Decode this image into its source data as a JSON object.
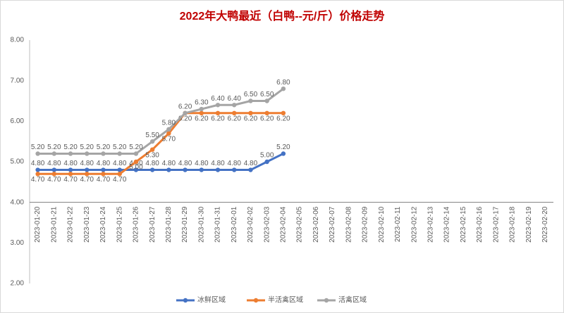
{
  "chart_data": {
    "type": "line",
    "title": "2022年大鸭最近（白鸭--元/斤）价格走势",
    "categories": [
      "2023-01-20",
      "2023-01-21",
      "2023-01-22",
      "2023-01-23",
      "2023-01-24",
      "2023-01-25",
      "2023-01-26",
      "2023-01-27",
      "2023-01-28",
      "2023-01-29",
      "2023-01-30",
      "2023-01-31",
      "2023-02-01",
      "2023-02-02",
      "2023-02-03",
      "2023-02-04",
      "2023-02-05",
      "2023-02-06",
      "2023-02-07",
      "2023-02-08",
      "2023-02-09",
      "2023-02-10",
      "2023-02-11",
      "2023-02-12",
      "2023-02-13",
      "2023-02-14",
      "2023-02-15",
      "2023-02-16",
      "2023-02-17",
      "2023-02-18",
      "2023-02-19",
      "2023-02-20"
    ],
    "series": [
      {
        "name": "冰鲜区域",
        "color": "#4472c4",
        "values": [
          4.8,
          4.8,
          4.8,
          4.8,
          4.8,
          4.8,
          4.8,
          4.8,
          4.8,
          4.8,
          4.8,
          4.8,
          4.8,
          4.8,
          5.0,
          5.2,
          null,
          null,
          null,
          null,
          null,
          null,
          null,
          null,
          null,
          null,
          null,
          null,
          null,
          null,
          null,
          null
        ],
        "value_labels": [
          "4.80",
          "4.80",
          "4.80",
          "4.80",
          "4.80",
          "4.80",
          "4.80",
          "4.80",
          "4.80",
          "4.80",
          "4.80",
          "4.80",
          "4.80",
          "4.80",
          "5.00",
          "5.20",
          null,
          null,
          null,
          null,
          null,
          null,
          null,
          null,
          null,
          null,
          null,
          null,
          null,
          null,
          null,
          null
        ]
      },
      {
        "name": "半活禽区域",
        "color": "#ed7d31",
        "values": [
          4.7,
          4.7,
          4.7,
          4.7,
          4.7,
          4.7,
          5.0,
          5.3,
          5.7,
          6.2,
          6.2,
          6.2,
          6.2,
          6.2,
          6.2,
          6.2,
          null,
          null,
          null,
          null,
          null,
          null,
          null,
          null,
          null,
          null,
          null,
          null,
          null,
          null,
          null,
          null
        ],
        "value_labels": [
          "4.70",
          "4.70",
          "4.70",
          "4.70",
          "4.70",
          "4.70",
          "5.00",
          "5.30",
          "5.70",
          "6.20",
          "6.20",
          "6.20",
          "6.20",
          "6.20",
          "6.20",
          "6.20",
          null,
          null,
          null,
          null,
          null,
          null,
          null,
          null,
          null,
          null,
          null,
          null,
          null,
          null,
          null,
          null
        ]
      },
      {
        "name": "活禽区域",
        "color": "#a5a5a5",
        "values": [
          5.2,
          5.2,
          5.2,
          5.2,
          5.2,
          5.2,
          5.2,
          5.5,
          5.8,
          6.2,
          6.3,
          6.4,
          6.4,
          6.5,
          6.5,
          6.8,
          null,
          null,
          null,
          null,
          null,
          null,
          null,
          null,
          null,
          null,
          null,
          null,
          null,
          null,
          null,
          null
        ],
        "value_labels": [
          "5.20",
          "5.20",
          "5.20",
          "5.20",
          "5.20",
          "5.20",
          "5.20",
          "5.50",
          "5.80",
          "6.20",
          "6.30",
          "6.40",
          "6.40",
          "6.50",
          "6.50",
          "6.80",
          null,
          null,
          null,
          null,
          null,
          null,
          null,
          null,
          null,
          null,
          null,
          null,
          null,
          null,
          null,
          null
        ]
      }
    ],
    "ylim": [
      2,
      8
    ],
    "yticks": [
      {
        "value": 2,
        "label": "2.00"
      },
      {
        "value": 3,
        "label": "3.00"
      },
      {
        "value": 4,
        "label": "4.00"
      },
      {
        "value": 5,
        "label": "5.00"
      },
      {
        "value": 6,
        "label": "6.00"
      },
      {
        "value": 7,
        "label": "7.00"
      },
      {
        "value": 8,
        "label": "8.00"
      }
    ],
    "x_axis_crosses": 4,
    "grid": false,
    "legend": "bottom"
  }
}
